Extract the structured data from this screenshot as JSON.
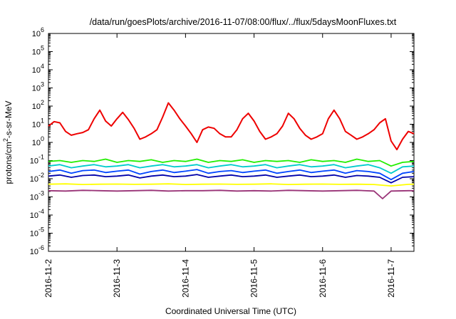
{
  "chart_data": {
    "type": "line",
    "title": "/data/run/goesPlots/archive/2016-11-07/08:00/flux/../flux/5daysMoonFluxes.txt",
    "xlabel": "Coordinated Universal Time (UTC)",
    "ylabel_parts": [
      "protons/cm",
      "2",
      "-s-sr-MeV"
    ],
    "y_scale": "log",
    "ylim": [
      1e-06,
      1000000.0
    ],
    "y_ticks": [
      {
        "base": "10",
        "exp": "-6",
        "value": 1e-06
      },
      {
        "base": "10",
        "exp": "-5",
        "value": 1e-05
      },
      {
        "base": "10",
        "exp": "-4",
        "value": 0.0001
      },
      {
        "base": "10",
        "exp": "-3",
        "value": 0.001
      },
      {
        "base": "10",
        "exp": "-2",
        "value": 0.01
      },
      {
        "base": "10",
        "exp": "-1",
        "value": 0.1
      },
      {
        "base": "10",
        "exp": "0",
        "value": 1
      },
      {
        "base": "10",
        "exp": "1",
        "value": 10
      },
      {
        "base": "10",
        "exp": "2",
        "value": 100
      },
      {
        "base": "10",
        "exp": "3",
        "value": 1000
      },
      {
        "base": "10",
        "exp": "4",
        "value": 10000
      },
      {
        "base": "10",
        "exp": "5",
        "value": 100000
      },
      {
        "base": "10",
        "exp": "6",
        "value": 1000000
      }
    ],
    "xlim": [
      "2016-11-02T00:00",
      "2016-11-07T08:00"
    ],
    "x_ticks": [
      "2016-11-2",
      "2016-11-3",
      "2016-11-4",
      "2016-11-5",
      "2016-11-6",
      "2016-11-7"
    ],
    "grid": false,
    "legend": "none",
    "series": [
      {
        "color": "#ee0000",
        "x": [
          "2016-11-02T00:00",
          "2016-11-02T02:00",
          "2016-11-02T04:00",
          "2016-11-02T06:00",
          "2016-11-02T08:00",
          "2016-11-02T10:00",
          "2016-11-02T12:00",
          "2016-11-02T14:00",
          "2016-11-02T16:00",
          "2016-11-02T18:00",
          "2016-11-02T20:00",
          "2016-11-02T22:00",
          "2016-11-03T00:00",
          "2016-11-03T02:00",
          "2016-11-03T04:00",
          "2016-11-03T06:00",
          "2016-11-03T08:00",
          "2016-11-03T10:00",
          "2016-11-03T12:00",
          "2016-11-03T14:00",
          "2016-11-03T16:00",
          "2016-11-03T18:00",
          "2016-11-03T20:00",
          "2016-11-03T22:00",
          "2016-11-04T00:00",
          "2016-11-04T02:00",
          "2016-11-04T04:00",
          "2016-11-04T06:00",
          "2016-11-04T08:00",
          "2016-11-04T10:00",
          "2016-11-04T12:00",
          "2016-11-04T14:00",
          "2016-11-04T16:00",
          "2016-11-04T18:00",
          "2016-11-04T20:00",
          "2016-11-04T22:00",
          "2016-11-05T00:00",
          "2016-11-05T02:00",
          "2016-11-05T04:00",
          "2016-11-05T06:00",
          "2016-11-05T08:00",
          "2016-11-05T10:00",
          "2016-11-05T12:00",
          "2016-11-05T14:00",
          "2016-11-05T16:00",
          "2016-11-05T18:00",
          "2016-11-05T20:00",
          "2016-11-05T22:00",
          "2016-11-06T00:00",
          "2016-11-06T02:00",
          "2016-11-06T04:00",
          "2016-11-06T06:00",
          "2016-11-06T08:00",
          "2016-11-06T10:00",
          "2016-11-06T12:00",
          "2016-11-06T14:00",
          "2016-11-06T16:00",
          "2016-11-06T18:00",
          "2016-11-06T20:00",
          "2016-11-06T22:00",
          "2016-11-07T00:00",
          "2016-11-07T02:00",
          "2016-11-07T04:00",
          "2016-11-07T06:00",
          "2016-11-07T08:00"
        ],
        "values": [
          8,
          14,
          12,
          4,
          2.5,
          3,
          3.5,
          5,
          20,
          60,
          15,
          8,
          20,
          45,
          18,
          6,
          1.5,
          2,
          3,
          5,
          25,
          150,
          60,
          20,
          8,
          3,
          1,
          5,
          7,
          6,
          3,
          2,
          2,
          5,
          20,
          40,
          15,
          4,
          1.5,
          2,
          3,
          8,
          40,
          20,
          6,
          2.5,
          1.5,
          2,
          3,
          20,
          60,
          20,
          4,
          2.5,
          1.5,
          2,
          3,
          5,
          12,
          20,
          1.2,
          0.4,
          1.5,
          4,
          3
        ]
      },
      {
        "color": "#22ee00",
        "x": [
          "2016-11-02T00:00",
          "2016-11-02T04:00",
          "2016-11-02T08:00",
          "2016-11-02T12:00",
          "2016-11-02T16:00",
          "2016-11-02T20:00",
          "2016-11-03T00:00",
          "2016-11-03T04:00",
          "2016-11-03T08:00",
          "2016-11-03T12:00",
          "2016-11-03T16:00",
          "2016-11-03T20:00",
          "2016-11-04T00:00",
          "2016-11-04T04:00",
          "2016-11-04T08:00",
          "2016-11-04T12:00",
          "2016-11-04T16:00",
          "2016-11-04T20:00",
          "2016-11-05T00:00",
          "2016-11-05T04:00",
          "2016-11-05T08:00",
          "2016-11-05T12:00",
          "2016-11-05T16:00",
          "2016-11-05T20:00",
          "2016-11-06T00:00",
          "2016-11-06T04:00",
          "2016-11-06T08:00",
          "2016-11-06T12:00",
          "2016-11-06T16:00",
          "2016-11-06T20:00",
          "2016-11-07T00:00",
          "2016-11-07T04:00",
          "2016-11-07T08:00"
        ],
        "values": [
          0.09,
          0.1,
          0.08,
          0.1,
          0.09,
          0.12,
          0.08,
          0.1,
          0.09,
          0.11,
          0.08,
          0.1,
          0.09,
          0.12,
          0.08,
          0.1,
          0.09,
          0.11,
          0.08,
          0.1,
          0.09,
          0.1,
          0.08,
          0.11,
          0.09,
          0.1,
          0.08,
          0.12,
          0.09,
          0.1,
          0.05,
          0.08,
          0.09
        ]
      },
      {
        "color": "#00cccc",
        "x": [
          "2016-11-02T00:00",
          "2016-11-02T04:00",
          "2016-11-02T08:00",
          "2016-11-02T12:00",
          "2016-11-02T16:00",
          "2016-11-02T20:00",
          "2016-11-03T00:00",
          "2016-11-03T04:00",
          "2016-11-03T08:00",
          "2016-11-03T12:00",
          "2016-11-03T16:00",
          "2016-11-03T20:00",
          "2016-11-04T00:00",
          "2016-11-04T04:00",
          "2016-11-04T08:00",
          "2016-11-04T12:00",
          "2016-11-04T16:00",
          "2016-11-04T20:00",
          "2016-11-05T00:00",
          "2016-11-05T04:00",
          "2016-11-05T08:00",
          "2016-11-05T12:00",
          "2016-11-05T16:00",
          "2016-11-05T20:00",
          "2016-11-06T00:00",
          "2016-11-06T04:00",
          "2016-11-06T08:00",
          "2016-11-06T12:00",
          "2016-11-06T16:00",
          "2016-11-06T20:00",
          "2016-11-07T00:00",
          "2016-11-07T04:00",
          "2016-11-07T08:00"
        ],
        "values": [
          0.05,
          0.06,
          0.04,
          0.05,
          0.06,
          0.045,
          0.05,
          0.06,
          0.04,
          0.05,
          0.06,
          0.045,
          0.05,
          0.06,
          0.04,
          0.05,
          0.06,
          0.045,
          0.05,
          0.06,
          0.04,
          0.05,
          0.06,
          0.045,
          0.05,
          0.06,
          0.04,
          0.05,
          0.06,
          0.04,
          0.02,
          0.045,
          0.05
        ]
      },
      {
        "color": "#0044ff",
        "x": [
          "2016-11-02T00:00",
          "2016-11-02T04:00",
          "2016-11-02T08:00",
          "2016-11-02T12:00",
          "2016-11-02T16:00",
          "2016-11-02T20:00",
          "2016-11-03T00:00",
          "2016-11-03T04:00",
          "2016-11-03T08:00",
          "2016-11-03T12:00",
          "2016-11-03T16:00",
          "2016-11-03T20:00",
          "2016-11-04T00:00",
          "2016-11-04T04:00",
          "2016-11-04T08:00",
          "2016-11-04T12:00",
          "2016-11-04T16:00",
          "2016-11-04T20:00",
          "2016-11-05T00:00",
          "2016-11-05T04:00",
          "2016-11-05T08:00",
          "2016-11-05T12:00",
          "2016-11-05T16:00",
          "2016-11-05T20:00",
          "2016-11-06T00:00",
          "2016-11-06T04:00",
          "2016-11-06T08:00",
          "2016-11-06T12:00",
          "2016-11-06T16:00",
          "2016-11-06T20:00",
          "2016-11-07T00:00",
          "2016-11-07T04:00",
          "2016-11-07T08:00"
        ],
        "values": [
          0.025,
          0.03,
          0.02,
          0.028,
          0.03,
          0.022,
          0.026,
          0.03,
          0.018,
          0.025,
          0.03,
          0.022,
          0.026,
          0.032,
          0.02,
          0.025,
          0.028,
          0.022,
          0.026,
          0.03,
          0.02,
          0.025,
          0.03,
          0.022,
          0.026,
          0.03,
          0.02,
          0.028,
          0.025,
          0.02,
          0.009,
          0.02,
          0.025
        ]
      },
      {
        "color": "#0000aa",
        "x": [
          "2016-11-02T00:00",
          "2016-11-02T04:00",
          "2016-11-02T08:00",
          "2016-11-02T12:00",
          "2016-11-02T16:00",
          "2016-11-02T20:00",
          "2016-11-03T00:00",
          "2016-11-03T04:00",
          "2016-11-03T08:00",
          "2016-11-03T12:00",
          "2016-11-03T16:00",
          "2016-11-03T20:00",
          "2016-11-04T00:00",
          "2016-11-04T04:00",
          "2016-11-04T08:00",
          "2016-11-04T12:00",
          "2016-11-04T16:00",
          "2016-11-04T20:00",
          "2016-11-05T00:00",
          "2016-11-05T04:00",
          "2016-11-05T08:00",
          "2016-11-05T12:00",
          "2016-11-05T16:00",
          "2016-11-05T20:00",
          "2016-11-06T00:00",
          "2016-11-06T04:00",
          "2016-11-06T08:00",
          "2016-11-06T12:00",
          "2016-11-06T16:00",
          "2016-11-06T20:00",
          "2016-11-07T00:00",
          "2016-11-07T04:00",
          "2016-11-07T08:00"
        ],
        "values": [
          0.014,
          0.016,
          0.012,
          0.015,
          0.016,
          0.013,
          0.014,
          0.016,
          0.011,
          0.014,
          0.016,
          0.013,
          0.014,
          0.017,
          0.012,
          0.014,
          0.016,
          0.013,
          0.014,
          0.016,
          0.012,
          0.014,
          0.016,
          0.013,
          0.014,
          0.016,
          0.012,
          0.015,
          0.014,
          0.012,
          0.006,
          0.012,
          0.013
        ]
      },
      {
        "color": "#ffff00",
        "x": [
          "2016-11-02T00:00",
          "2016-11-02T06:00",
          "2016-11-02T12:00",
          "2016-11-02T18:00",
          "2016-11-03T00:00",
          "2016-11-03T06:00",
          "2016-11-03T12:00",
          "2016-11-03T18:00",
          "2016-11-04T00:00",
          "2016-11-04T06:00",
          "2016-11-04T12:00",
          "2016-11-04T18:00",
          "2016-11-05T00:00",
          "2016-11-05T06:00",
          "2016-11-05T12:00",
          "2016-11-05T18:00",
          "2016-11-06T00:00",
          "2016-11-06T06:00",
          "2016-11-06T12:00",
          "2016-11-06T18:00",
          "2016-11-07T00:00",
          "2016-11-07T06:00",
          "2016-11-07T08:00"
        ],
        "values": [
          0.005,
          0.0052,
          0.0048,
          0.005,
          0.0051,
          0.0049,
          0.005,
          0.0052,
          0.0048,
          0.005,
          0.0051,
          0.0049,
          0.005,
          0.0052,
          0.0048,
          0.005,
          0.0051,
          0.0049,
          0.005,
          0.0048,
          0.004,
          0.0049,
          0.005
        ]
      },
      {
        "color": "#993377",
        "x": [
          "2016-11-02T00:00",
          "2016-11-02T06:00",
          "2016-11-02T12:00",
          "2016-11-02T18:00",
          "2016-11-03T00:00",
          "2016-11-03T06:00",
          "2016-11-03T12:00",
          "2016-11-03T18:00",
          "2016-11-04T00:00",
          "2016-11-04T06:00",
          "2016-11-04T12:00",
          "2016-11-04T18:00",
          "2016-11-05T00:00",
          "2016-11-05T06:00",
          "2016-11-05T12:00",
          "2016-11-05T18:00",
          "2016-11-06T00:00",
          "2016-11-06T06:00",
          "2016-11-06T12:00",
          "2016-11-06T18:00",
          "2016-11-06T21:00",
          "2016-11-07T00:00",
          "2016-11-07T06:00",
          "2016-11-07T08:00"
        ],
        "values": [
          0.0022,
          0.0021,
          0.0023,
          0.0022,
          0.0021,
          0.0022,
          0.0023,
          0.0021,
          0.0022,
          0.0022,
          0.0023,
          0.0021,
          0.0022,
          0.0021,
          0.0023,
          0.0022,
          0.0021,
          0.0022,
          0.0023,
          0.0021,
          0.0008,
          0.0021,
          0.0022,
          0.0022
        ]
      }
    ]
  }
}
